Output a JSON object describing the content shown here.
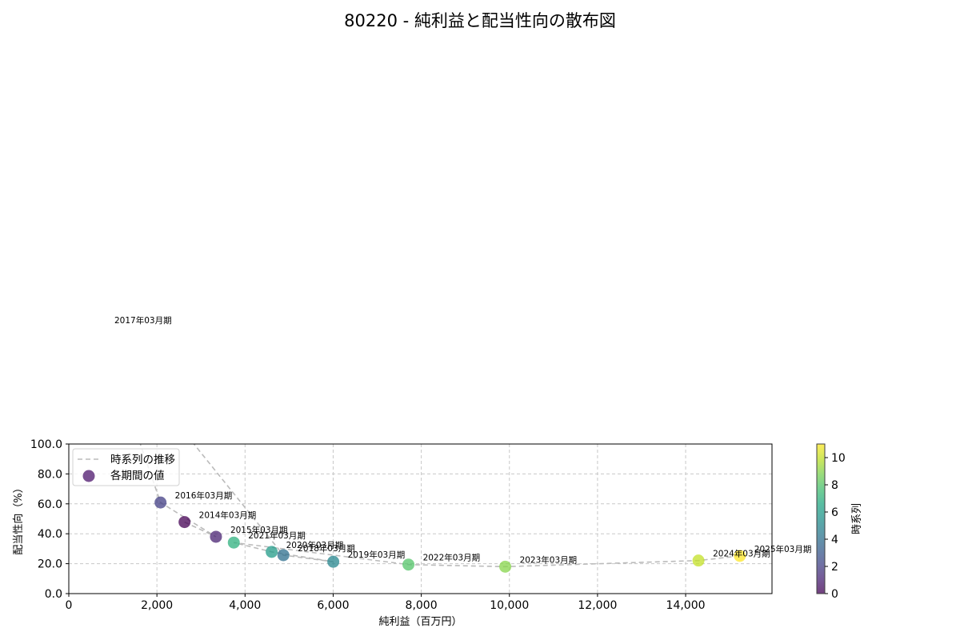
{
  "title": "80220 - 純利益と配当性向の散布図",
  "chart_data": {
    "type": "scatter",
    "title": "80220 - 純利益と配当性向の散布図",
    "xlabel": "純利益（百万円）",
    "ylabel": "配当性向（%）",
    "xlim": [
      0,
      15960
    ],
    "ylim": [
      0,
      100
    ],
    "xticks": [
      0,
      2000,
      4000,
      6000,
      8000,
      10000,
      12000,
      14000
    ],
    "xtick_labels": [
      "0",
      "2,000",
      "4,000",
      "6,000",
      "8,000",
      "10,000",
      "12,000",
      "14,000"
    ],
    "yticks": [
      0,
      20,
      40,
      60,
      80,
      100
    ],
    "ytick_labels": [
      "0.0",
      "20.0",
      "40.0",
      "60.0",
      "80.0",
      "100.0"
    ],
    "grid": true,
    "legend": {
      "position": "upper left",
      "entries": [
        {
          "label": "時系列の推移",
          "type": "dashed-line",
          "color": "#bbbbbb"
        },
        {
          "label": "各期間の値",
          "type": "marker",
          "color": "#6a3d85"
        }
      ]
    },
    "colorbar": {
      "label": "時系列",
      "min": 0,
      "max": 11,
      "ticks": [
        0,
        2,
        4,
        6,
        8,
        10
      ],
      "colormap": "viridis"
    },
    "points": [
      {
        "label": "2014年03月期",
        "x": 2627,
        "y": 47.8,
        "t": 0
      },
      {
        "label": "2015年03月期",
        "x": 3340,
        "y": 38.0,
        "t": 1
      },
      {
        "label": "2016年03月期",
        "x": 2082,
        "y": 60.9,
        "t": 2
      },
      {
        "label": "2017年03月期",
        "x": 708,
        "y": 178.0,
        "t": 3
      },
      {
        "label": "2018年03月期",
        "x": 4870,
        "y": 25.7,
        "t": 4
      },
      {
        "label": "2019年03月期",
        "x": 6003,
        "y": 21.3,
        "t": 5
      },
      {
        "label": "2020年03月期",
        "x": 4605,
        "y": 27.9,
        "t": 6
      },
      {
        "label": "2021年03月期",
        "x": 3745,
        "y": 34.1,
        "t": 7
      },
      {
        "label": "2022年03月期",
        "x": 7709,
        "y": 19.4,
        "t": 8
      },
      {
        "label": "2023年03月期",
        "x": 9906,
        "y": 18.0,
        "t": 9
      },
      {
        "label": "2024年03月期",
        "x": 14291,
        "y": 22.1,
        "t": 10
      },
      {
        "label": "2025年03月期",
        "x": 15230,
        "y": 25.2,
        "t": 11
      }
    ]
  }
}
